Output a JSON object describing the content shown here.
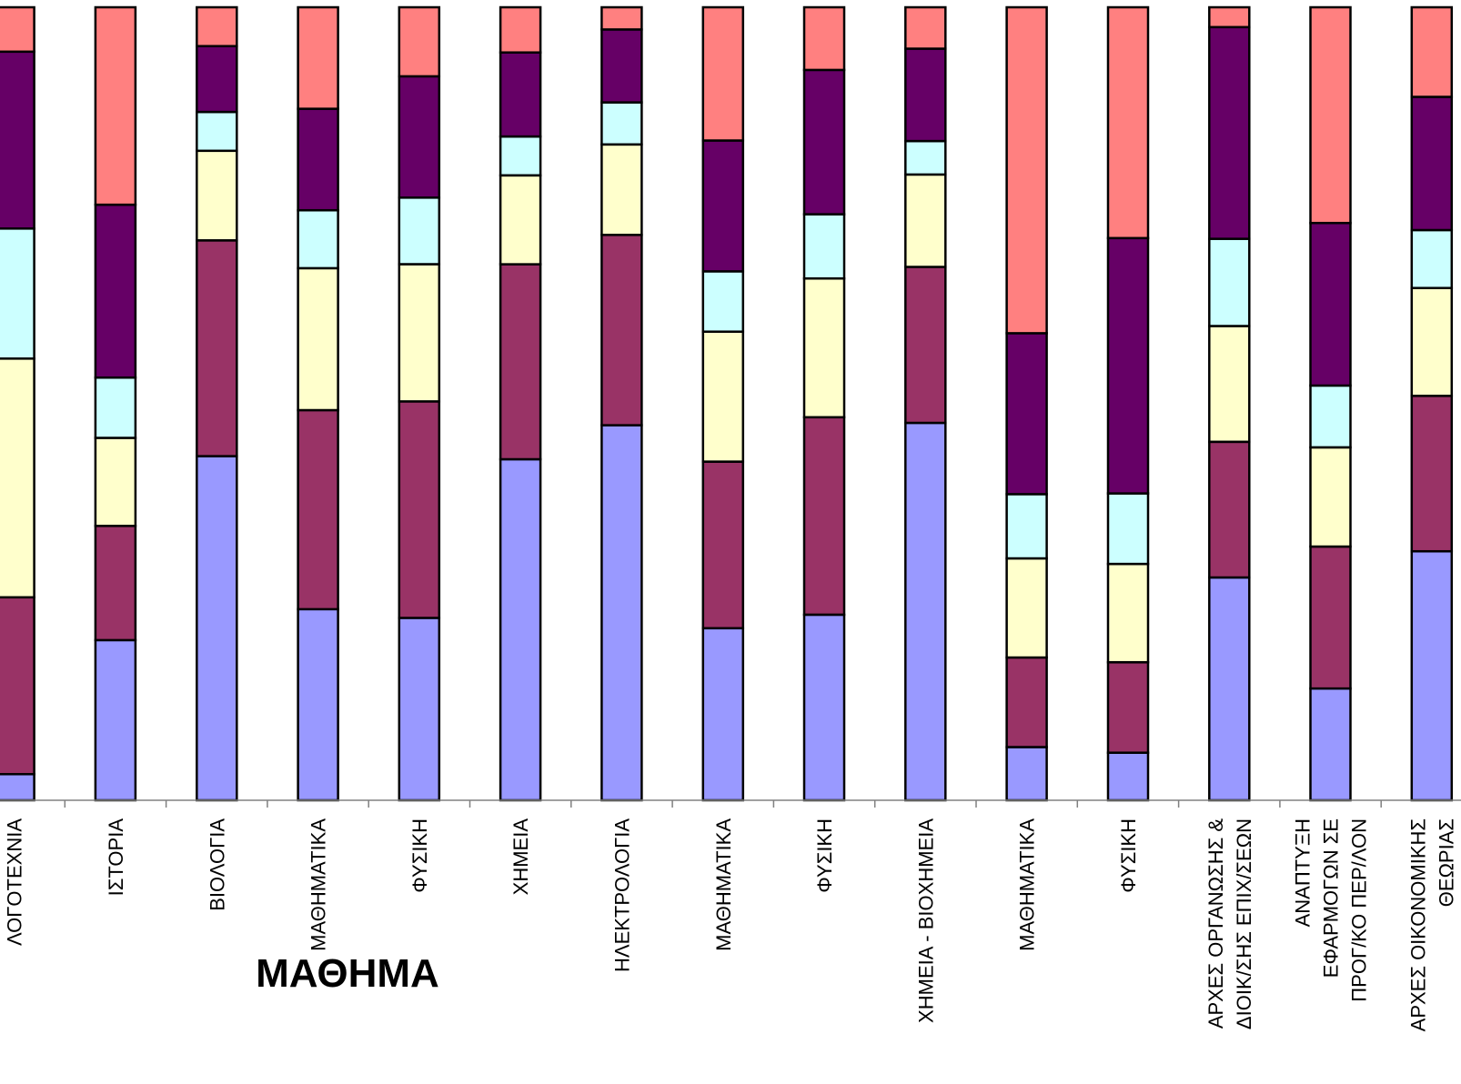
{
  "chart_data": {
    "type": "bar",
    "stacked": true,
    "normalized": true,
    "xlabel": "ΜΑΘΗΜΑ",
    "ylim": [
      0,
      1
    ],
    "grid": false,
    "colors": [
      "#9999ff",
      "#993366",
      "#ffffcc",
      "#ccffff",
      "#660066",
      "#ff8080"
    ],
    "categories": [
      [
        "ΛΟΓΟΤΕΧΝΙΑ"
      ],
      [
        "ΙΣΤΟΡΙΑ"
      ],
      [
        "ΒΙΟΛΟΓΙΑ"
      ],
      [
        "ΜΑΘΗΜΑΤΙΚΑ"
      ],
      [
        "ΦΥΣΙΚΗ"
      ],
      [
        "ΧΗΜΕΙΑ"
      ],
      [
        "ΗΛΕΚΤΡΟΛΟΓΙΑ"
      ],
      [
        "ΜΑΘΗΜΑΤΙΚΑ"
      ],
      [
        "ΦΥΣΙΚΗ"
      ],
      [
        "ΧΗΜΕΙΑ - ΒΙΟΧΗΜΕΙΑ"
      ],
      [
        "ΜΑΘΗΜΑΤΙΚΑ"
      ],
      [
        "ΦΥΣΙΚΗ"
      ],
      [
        "ΑΡΧΕΣ ΟΡΓΑΝΩΣΗΣ &",
        "ΔΙΟΙΚ/ΣΗΣ ΕΠΙΧ/ΣΕΩΝ"
      ],
      [
        "ΑΝΑΠΤΥΞΗ",
        "ΕΦΑΡΜΟΓΩΝ ΣΕ",
        "ΠΡΟΓ/ΚΟ ΠΕΡ/ΛΟΝ"
      ],
      [
        "ΑΡΧΕΣ ΟΙΚΟΝΟΜΙΚΗΣ",
        "ΘΕΩΡΙΑΣ"
      ]
    ],
    "series": [
      {
        "values": [
          0.033,
          0.202,
          0.434,
          0.241,
          0.23,
          0.43,
          0.473,
          0.217,
          0.234,
          0.474,
          0.067,
          0.06,
          0.281,
          0.141,
          0.314
        ]
      },
      {
        "values": [
          0.223,
          0.144,
          0.272,
          0.251,
          0.273,
          0.246,
          0.24,
          0.21,
          0.249,
          0.196,
          0.113,
          0.114,
          0.171,
          0.179,
          0.196
        ]
      },
      {
        "values": [
          0.301,
          0.111,
          0.113,
          0.179,
          0.173,
          0.112,
          0.114,
          0.164,
          0.175,
          0.116,
          0.125,
          0.124,
          0.146,
          0.125,
          0.136
        ]
      },
      {
        "values": [
          0.164,
          0.076,
          0.049,
          0.073,
          0.084,
          0.049,
          0.053,
          0.076,
          0.081,
          0.042,
          0.081,
          0.089,
          0.11,
          0.078,
          0.073
        ]
      },
      {
        "values": [
          0.223,
          0.218,
          0.083,
          0.128,
          0.153,
          0.106,
          0.092,
          0.165,
          0.182,
          0.116,
          0.203,
          0.322,
          0.267,
          0.205,
          0.168
        ]
      },
      {
        "values": [
          0.056,
          0.249,
          0.049,
          0.128,
          0.087,
          0.057,
          0.028,
          0.168,
          0.079,
          0.052,
          0.411,
          0.291,
          0.025,
          0.272,
          0.113
        ]
      }
    ]
  }
}
